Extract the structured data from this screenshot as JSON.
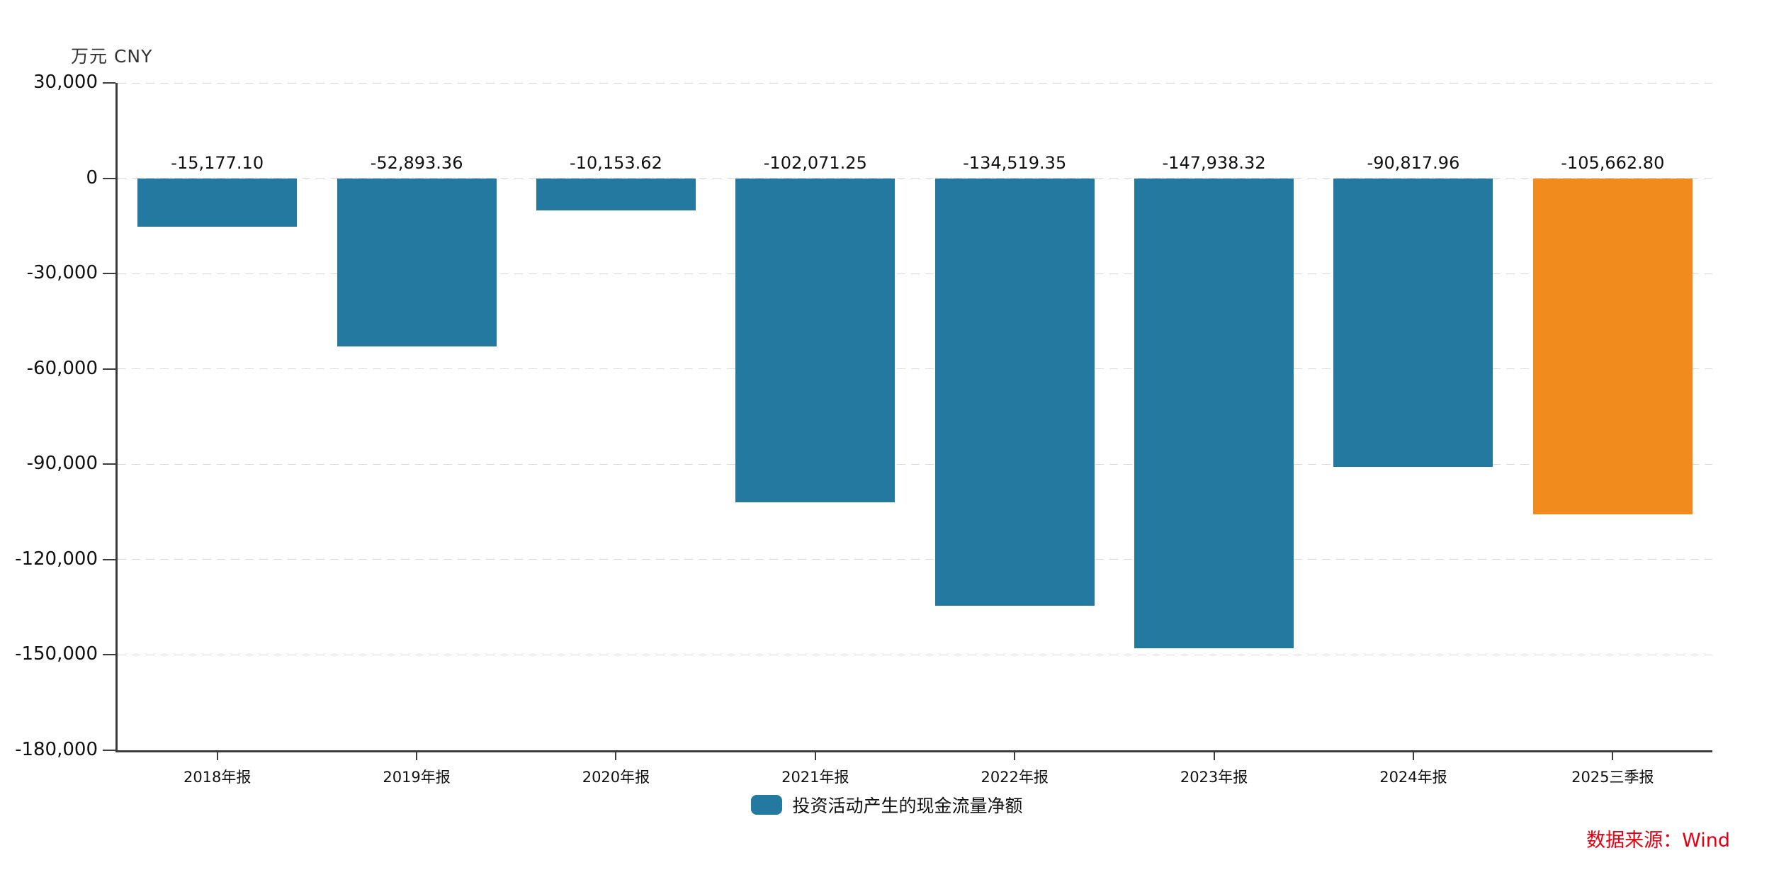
{
  "unit_label": "万元  CNY",
  "source_label": "数据来源：Wind",
  "legend": {
    "label": "投资活动产生的现金流量净额"
  },
  "colors": {
    "bar_default": "#2379A0",
    "bar_highlight": "#F28B1D",
    "source_text": "#E60012",
    "axis_line": "#3C3C3C",
    "gridline": "#D9D9D9",
    "label_text": "#111111"
  },
  "chart_data": {
    "type": "bar",
    "title": "",
    "ylabel": "万元 CNY",
    "xlabel": "",
    "categories": [
      "2018年报",
      "2019年报",
      "2020年报",
      "2021年报",
      "2022年报",
      "2023年报",
      "2024年报",
      "2025三季报"
    ],
    "series": [
      {
        "name": "投资活动产生的现金流量净额",
        "values": [
          -15177.1,
          -52893.36,
          -10153.62,
          -102071.25,
          -134519.35,
          -147938.32,
          -90817.96,
          -105662.8
        ]
      }
    ],
    "value_labels": [
      "-15,177.10",
      "-52,893.36",
      "-10,153.62",
      "-102,071.25",
      "-134,519.35",
      "-147,938.32",
      "-90,817.96",
      "-105,662.80"
    ],
    "y_tick_labels": [
      "30,000",
      "0",
      "-30,000",
      "-60,000",
      "-90,000",
      "-120,000",
      "-150,000",
      "-180,000"
    ],
    "y_tick_values": [
      30000,
      0,
      -30000,
      -60000,
      -90000,
      -120000,
      -150000,
      -180000
    ],
    "ylim": [
      -180000,
      30000
    ],
    "grid": "horizontal-dashed",
    "legend_position": "bottom-center",
    "highlight_last_bar": true,
    "bar_width_fraction": 0.8
  }
}
